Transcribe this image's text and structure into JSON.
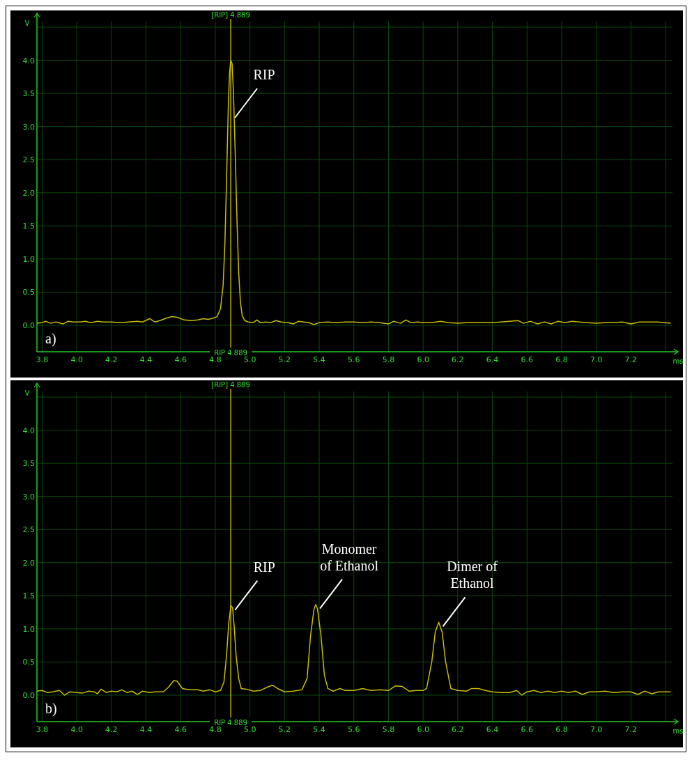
{
  "chart_data": [
    {
      "type": "line",
      "xlabel": "ms",
      "ylabel": "V",
      "xlim": [
        3.77,
        7.44
      ],
      "ylim": [
        -0.4,
        4.5
      ],
      "xticks": [
        {
          "value": 3.8,
          "label": "3.8"
        },
        {
          "value": 4.0,
          "label": "4.0"
        },
        {
          "value": 4.2,
          "label": "4.2"
        },
        {
          "value": 4.4,
          "label": "4.4"
        },
        {
          "value": 4.6,
          "label": "4.6"
        },
        {
          "value": 4.8,
          "label": "4.8"
        },
        {
          "value": 5.0,
          "label": "5.0"
        },
        {
          "value": 5.2,
          "label": "5.2"
        },
        {
          "value": 5.4,
          "label": "5.4"
        },
        {
          "value": 5.6,
          "label": "5.6"
        },
        {
          "value": 5.8,
          "label": "5.8"
        },
        {
          "value": 6.0,
          "label": "6.0"
        },
        {
          "value": 6.2,
          "label": "6.2"
        },
        {
          "value": 6.4,
          "label": "6.4"
        },
        {
          "value": 6.6,
          "label": "6.6"
        },
        {
          "value": 6.8,
          "label": "6.8"
        },
        {
          "value": 7.0,
          "label": "7.0"
        },
        {
          "value": 7.2,
          "label": "7.2"
        },
        {
          "value": 7.4,
          "label": null
        }
      ],
      "yticks": [
        {
          "value": 0,
          "label": "0.0"
        },
        {
          "value": 0.5,
          "label": "0.5"
        },
        {
          "value": 1,
          "label": "1.0"
        },
        {
          "value": 1.5,
          "label": "1.5"
        },
        {
          "value": 2,
          "label": "2.0"
        },
        {
          "value": 2.5,
          "label": "2.5"
        },
        {
          "value": 3,
          "label": "3.0"
        },
        {
          "value": 3.5,
          "label": "3.5"
        },
        {
          "value": 4,
          "label": "4.0"
        },
        {
          "value": 4.5,
          "label": null
        }
      ],
      "grid": true,
      "marker": "none",
      "line_style": "solid",
      "ref_lines": [
        {
          "axis": "x",
          "value": 4.889,
          "label": "[RIP] 4.889",
          "color": "#d4c800"
        }
      ],
      "annotations": [
        {
          "text": "RIP 4.889",
          "x": 4.889,
          "y": -0.4
        },
        {
          "text": "RIP",
          "x": 4.889,
          "y": 4.0
        },
        "a)"
      ],
      "series": [
        {
          "color": "#c8bc00",
          "x": [
            3.77,
            3.8,
            3.82,
            3.85,
            3.88,
            3.92,
            3.95,
            3.98,
            4.02,
            4.05,
            4.08,
            4.12,
            4.15,
            4.2,
            4.25,
            4.3,
            4.35,
            4.38,
            4.42,
            4.45,
            4.48,
            4.52,
            4.55,
            4.58,
            4.62,
            4.66,
            4.7,
            4.73,
            4.76,
            4.79,
            4.81,
            4.83,
            4.845,
            4.855,
            4.865,
            4.875,
            4.882,
            4.889,
            4.897,
            4.905,
            4.915,
            4.925,
            4.935,
            4.945,
            4.955,
            4.97,
            4.99,
            5.02,
            5.04,
            5.06,
            5.09,
            5.12,
            5.15,
            5.18,
            5.22,
            5.25,
            5.28,
            5.31,
            5.34,
            5.37,
            5.4,
            5.45,
            5.5,
            5.55,
            5.6,
            5.65,
            5.7,
            5.75,
            5.8,
            5.83,
            5.87,
            5.9,
            5.93,
            5.97,
            6.0,
            6.05,
            6.1,
            6.15,
            6.2,
            6.25,
            6.3,
            6.35,
            6.4,
            6.45,
            6.5,
            6.55,
            6.58,
            6.62,
            6.66,
            6.7,
            6.74,
            6.78,
            6.82,
            6.86,
            6.9,
            6.95,
            7.0,
            7.05,
            7.1,
            7.15,
            7.2,
            7.25,
            7.3,
            7.35,
            7.43
          ],
          "values": [
            0.03,
            0.04,
            0.06,
            0.03,
            0.05,
            0.02,
            0.06,
            0.05,
            0.05,
            0.06,
            0.04,
            0.06,
            0.05,
            0.05,
            0.04,
            0.05,
            0.06,
            0.05,
            0.1,
            0.05,
            0.07,
            0.11,
            0.13,
            0.12,
            0.08,
            0.07,
            0.08,
            0.1,
            0.09,
            0.11,
            0.13,
            0.25,
            0.6,
            1.2,
            2.2,
            3.3,
            3.8,
            4.0,
            3.95,
            3.5,
            2.6,
            1.6,
            0.8,
            0.35,
            0.15,
            0.07,
            0.05,
            0.04,
            0.08,
            0.04,
            0.05,
            0.04,
            0.07,
            0.05,
            0.04,
            0.02,
            0.06,
            0.05,
            0.04,
            0.01,
            0.04,
            0.05,
            0.04,
            0.05,
            0.05,
            0.04,
            0.05,
            0.04,
            0.02,
            0.06,
            0.03,
            0.08,
            0.04,
            0.05,
            0.04,
            0.04,
            0.06,
            0.04,
            0.03,
            0.04,
            0.04,
            0.04,
            0.04,
            0.05,
            0.06,
            0.07,
            0.03,
            0.06,
            0.02,
            0.05,
            0.02,
            0.06,
            0.04,
            0.06,
            0.05,
            0.04,
            0.03,
            0.04,
            0.04,
            0.05,
            0.02,
            0.05,
            0.05,
            0.05,
            0.03
          ]
        }
      ]
    },
    {
      "type": "line",
      "xlabel": "ms",
      "ylabel": "V",
      "xlim": [
        3.77,
        7.44
      ],
      "ylim": [
        -0.4,
        4.5
      ],
      "xticks": [
        {
          "value": 3.8,
          "label": "3.8"
        },
        {
          "value": 4.0,
          "label": "4.0"
        },
        {
          "value": 4.2,
          "label": "4.2"
        },
        {
          "value": 4.4,
          "label": "4.4"
        },
        {
          "value": 4.6,
          "label": "4.6"
        },
        {
          "value": 4.8,
          "label": "4.8"
        },
        {
          "value": 5.0,
          "label": "5.0"
        },
        {
          "value": 5.2,
          "label": "5.2"
        },
        {
          "value": 5.4,
          "label": "5.4"
        },
        {
          "value": 5.6,
          "label": "5.6"
        },
        {
          "value": 5.8,
          "label": "5.8"
        },
        {
          "value": 6.0,
          "label": "6.0"
        },
        {
          "value": 6.2,
          "label": "6.2"
        },
        {
          "value": 6.4,
          "label": "6.4"
        },
        {
          "value": 6.6,
          "label": "6.6"
        },
        {
          "value": 6.8,
          "label": "6.8"
        },
        {
          "value": 7.0,
          "label": "7.0"
        },
        {
          "value": 7.2,
          "label": "7.2"
        },
        {
          "value": 7.4,
          "label": null
        }
      ],
      "yticks": [
        {
          "value": 0,
          "label": "0.0"
        },
        {
          "value": 0.5,
          "label": "0.5"
        },
        {
          "value": 1,
          "label": "1.0"
        },
        {
          "value": 1.5,
          "label": "1.5"
        },
        {
          "value": 2,
          "label": "2.0"
        },
        {
          "value": 2.5,
          "label": "2.5"
        },
        {
          "value": 3,
          "label": "3.0"
        },
        {
          "value": 3.5,
          "label": "3.5"
        },
        {
          "value": 4,
          "label": "4.0"
        },
        {
          "value": 4.5,
          "label": null
        }
      ],
      "grid": true,
      "marker": "none",
      "line_style": "solid",
      "ref_lines": [
        {
          "axis": "x",
          "value": 4.889,
          "label": "[RIP] 4.889",
          "color": "#d4c800"
        }
      ],
      "annotations": [
        {
          "text": "RIP 4.889",
          "x": 4.889,
          "y": -0.4
        },
        {
          "text": "RIP",
          "x": 4.89,
          "y": 1.35
        },
        {
          "text": "Monomer\nof Ethanol",
          "x": 5.38,
          "y": 1.37
        },
        {
          "text": "Dimer of\nEthanol",
          "x": 6.09,
          "y": 1.1
        },
        "b)"
      ],
      "series": [
        {
          "color": "#c8bc00",
          "x": [
            3.77,
            3.8,
            3.83,
            3.86,
            3.9,
            3.93,
            3.96,
            4.0,
            4.03,
            4.07,
            4.1,
            4.12,
            4.14,
            4.17,
            4.2,
            4.23,
            4.26,
            4.29,
            4.32,
            4.35,
            4.38,
            4.42,
            4.45,
            4.5,
            4.53,
            4.56,
            4.58,
            4.61,
            4.65,
            4.7,
            4.73,
            4.77,
            4.8,
            4.83,
            4.85,
            4.865,
            4.878,
            4.89,
            4.9,
            4.91,
            4.92,
            4.935,
            4.95,
            4.98,
            5.02,
            5.06,
            5.1,
            5.13,
            5.16,
            5.2,
            5.25,
            5.3,
            5.33,
            5.35,
            5.37,
            5.38,
            5.39,
            5.41,
            5.43,
            5.45,
            5.48,
            5.52,
            5.55,
            5.6,
            5.65,
            5.7,
            5.75,
            5.8,
            5.84,
            5.88,
            5.92,
            5.96,
            6.0,
            6.02,
            6.05,
            6.07,
            6.09,
            6.11,
            6.13,
            6.16,
            6.2,
            6.25,
            6.28,
            6.32,
            6.36,
            6.4,
            6.45,
            6.5,
            6.54,
            6.57,
            6.6,
            6.64,
            6.68,
            6.72,
            6.76,
            6.8,
            6.84,
            6.88,
            6.92,
            6.96,
            7.0,
            7.05,
            7.1,
            7.15,
            7.2,
            7.24,
            7.28,
            7.32,
            7.36,
            7.43
          ],
          "values": [
            0.06,
            0.07,
            0.04,
            0.05,
            0.07,
            0.0,
            0.05,
            0.04,
            0.03,
            0.06,
            0.05,
            0.02,
            0.09,
            0.04,
            0.06,
            0.05,
            0.08,
            0.04,
            0.06,
            0.01,
            0.06,
            0.04,
            0.05,
            0.05,
            0.12,
            0.22,
            0.21,
            0.1,
            0.08,
            0.08,
            0.06,
            0.08,
            0.05,
            0.07,
            0.2,
            0.6,
            1.1,
            1.35,
            1.32,
            1.0,
            0.6,
            0.25,
            0.1,
            0.09,
            0.06,
            0.07,
            0.12,
            0.15,
            0.1,
            0.05,
            0.06,
            0.08,
            0.25,
            0.9,
            1.3,
            1.37,
            1.3,
            0.9,
            0.3,
            0.1,
            0.06,
            0.1,
            0.07,
            0.07,
            0.1,
            0.07,
            0.08,
            0.07,
            0.14,
            0.13,
            0.06,
            0.07,
            0.07,
            0.1,
            0.5,
            0.95,
            1.1,
            0.95,
            0.5,
            0.1,
            0.07,
            0.06,
            0.1,
            0.1,
            0.07,
            0.05,
            0.04,
            0.04,
            0.07,
            0.0,
            0.05,
            0.07,
            0.04,
            0.06,
            0.04,
            0.06,
            0.04,
            0.06,
            0.01,
            0.05,
            0.05,
            0.06,
            0.04,
            0.05,
            0.05,
            0.01,
            0.06,
            0.02,
            0.05,
            0.05
          ]
        }
      ]
    }
  ]
}
